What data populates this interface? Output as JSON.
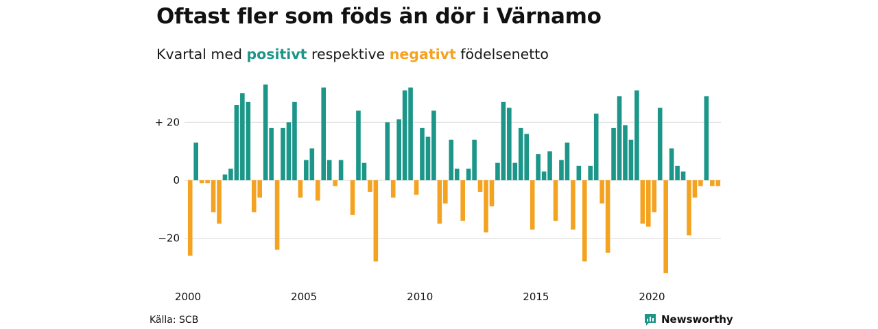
{
  "title": "Oftast fler som föds än dör i Värnamo",
  "subtitle": {
    "prefix": "Kvartal med ",
    "positive_word": "positivt",
    "middle": " respektive ",
    "negative_word": "negativt",
    "suffix": " födelsenetto"
  },
  "colors": {
    "positive": "#1b9688",
    "negative": "#f4a321",
    "grid": "#d9d9d9",
    "text": "#111111"
  },
  "source": "Källa: SCB",
  "brand": {
    "name": "Newsworthy",
    "icon": "newsworthy-logo-icon"
  },
  "chart_data": {
    "type": "bar",
    "title": "Oftast fler som föds än dör i Värnamo",
    "subtitle": "Kvartal med positivt respektive negativt födelsenetto",
    "xlabel": "",
    "ylabel": "",
    "start_year": 2000,
    "periods_per_year": 4,
    "x_ticks": [
      2000,
      2005,
      2010,
      2015,
      2020
    ],
    "y_ticks": [
      {
        "value": 20,
        "label": "+ 20"
      },
      {
        "value": 0,
        "label": "0"
      },
      {
        "value": -20,
        "label": "−20"
      }
    ],
    "ylim": [
      -32,
      35
    ],
    "grid": true,
    "values": [
      -26,
      13,
      -1,
      -1,
      -11,
      -15,
      2,
      4,
      26,
      30,
      27,
      -11,
      -6,
      33,
      18,
      -24,
      18,
      20,
      27,
      -6,
      7,
      11,
      -7,
      32,
      7,
      -2,
      7,
      0,
      -12,
      24,
      6,
      -4,
      -28,
      0,
      20,
      -6,
      21,
      31,
      32,
      -5,
      18,
      15,
      24,
      -15,
      -8,
      14,
      4,
      -14,
      4,
      14,
      -4,
      -18,
      -9,
      6,
      27,
      25,
      6,
      18,
      16,
      -17,
      9,
      3,
      10,
      -14,
      7,
      13,
      -17,
      5,
      -28,
      5,
      23,
      -8,
      -25,
      18,
      29,
      19,
      14,
      31,
      -15,
      -16,
      -11,
      25,
      -32,
      11,
      5,
      3,
      -19,
      -6,
      -2,
      29,
      -2,
      -2
    ]
  }
}
